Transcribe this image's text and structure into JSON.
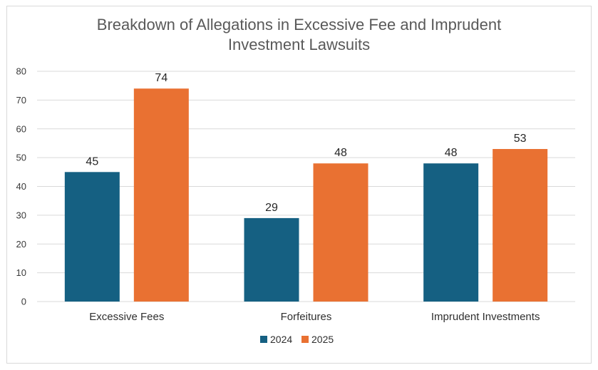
{
  "chart_data": {
    "type": "bar",
    "title_lines": [
      "Breakdown of Allegations in Excessive Fee and Imprudent",
      "Investment Lawsuits"
    ],
    "categories": [
      "Excessive Fees",
      "Forfeitures",
      "Imprudent Investments"
    ],
    "series": [
      {
        "name": "2024",
        "values": [
          45,
          29,
          48
        ],
        "color": "#156082"
      },
      {
        "name": "2025",
        "values": [
          74,
          48,
          53
        ],
        "color": "#e97132"
      }
    ],
    "yticks": [
      "0",
      "10",
      "20",
      "30",
      "40",
      "50",
      "60",
      "70",
      "80"
    ],
    "ylim": [
      0,
      80
    ],
    "xlabel": "",
    "ylabel": "",
    "grid": true,
    "legend_position": "bottom"
  }
}
